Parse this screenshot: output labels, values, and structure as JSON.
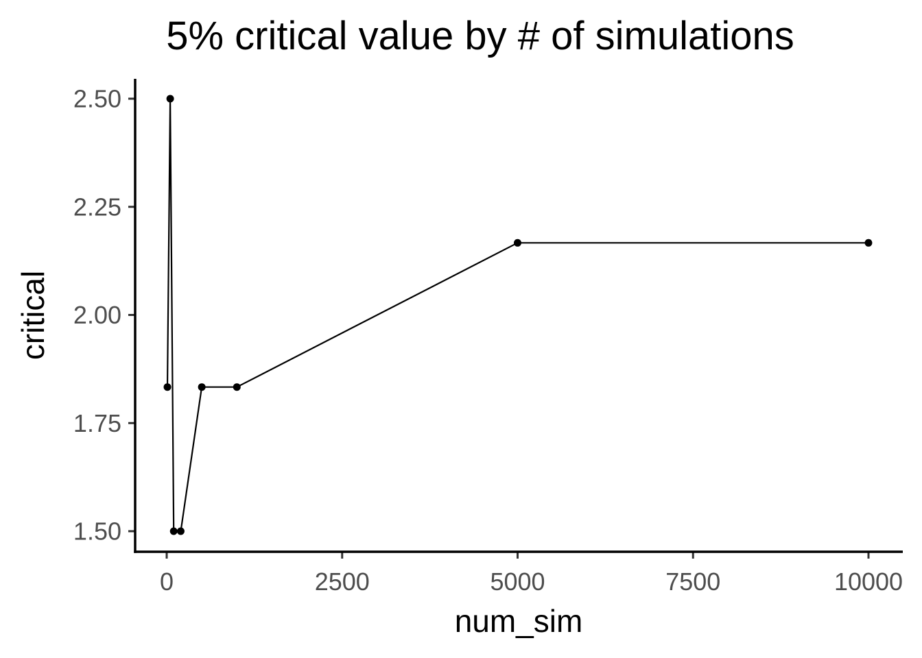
{
  "chart_data": {
    "type": "line",
    "title": "5% critical value by # of simulations",
    "xlabel": "num_sim",
    "ylabel": "critical",
    "x": [
      10,
      50,
      100,
      200,
      500,
      1000,
      5000,
      10000
    ],
    "series": [
      {
        "values": [
          1.8333,
          2.5,
          1.5,
          1.5,
          1.8333,
          1.8333,
          2.1667,
          2.1667
        ]
      }
    ],
    "xlim": [
      -500,
      10500
    ],
    "ylim": [
      1.45,
      2.55
    ],
    "x_ticks": [
      0,
      2500,
      5000,
      7500,
      10000
    ],
    "x_tick_labels": [
      "0",
      "2500",
      "5000",
      "7500",
      "10000"
    ],
    "y_ticks": [
      1.5,
      1.75,
      2.0,
      2.25,
      2.5
    ],
    "y_tick_labels": [
      "1.50",
      "1.75",
      "2.00",
      "2.25",
      "2.50"
    ],
    "grid": false,
    "legend": "none",
    "points_shown": true,
    "colors": {
      "series": "#000000",
      "axis": "#000000",
      "tick_label": "#4d4d4d"
    }
  }
}
